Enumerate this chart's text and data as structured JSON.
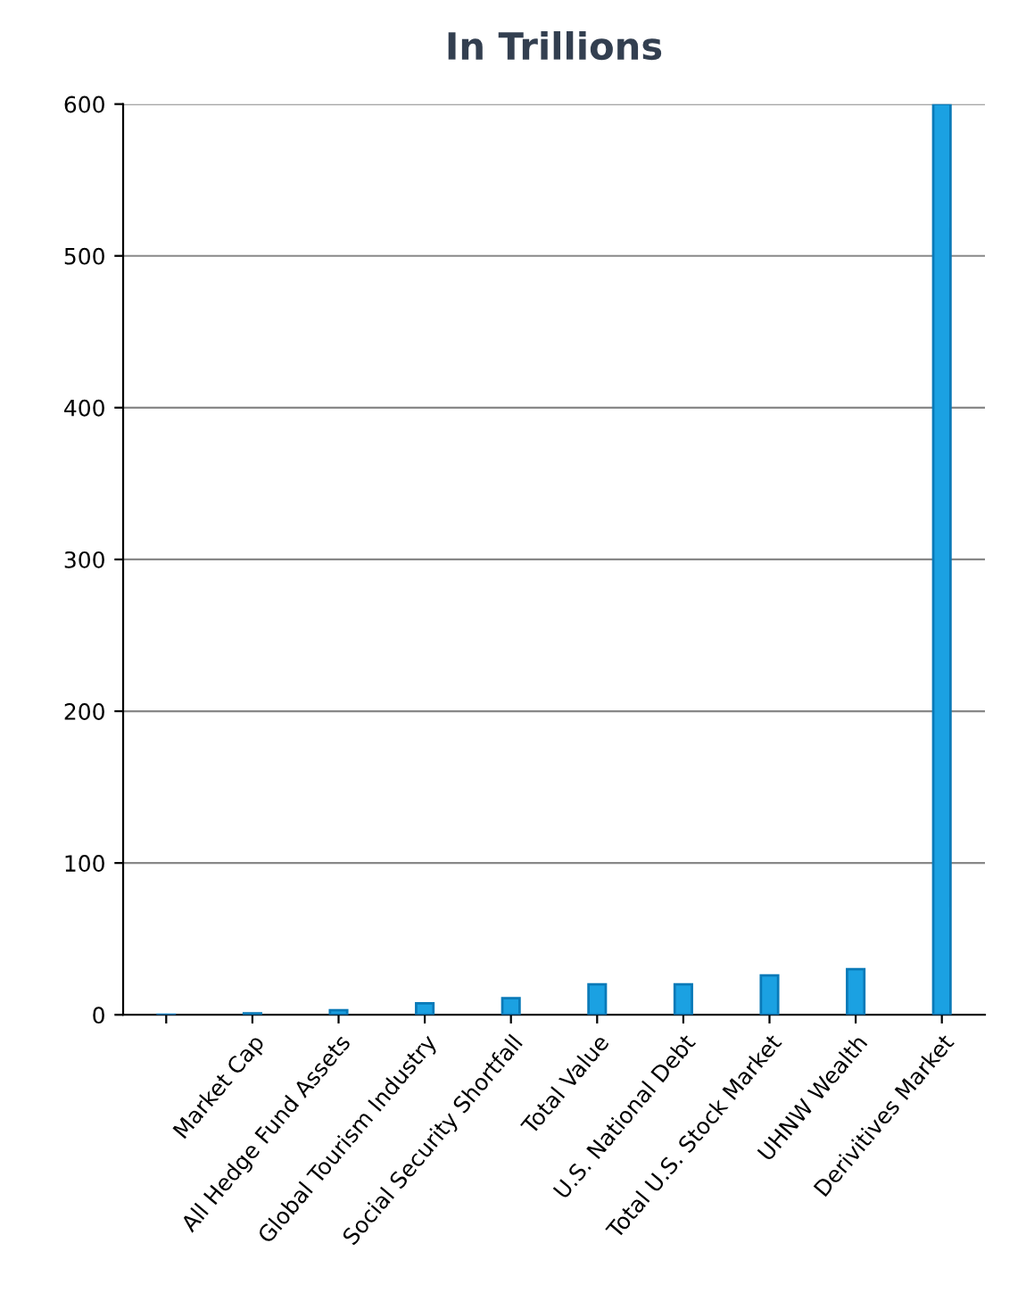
{
  "chart_data": {
    "type": "bar",
    "title": "In Trillions",
    "categories": [
      null,
      "Market Cap",
      "All Hedge Fund Assets",
      "Global Tourism Industry",
      "Social Security Shortfall",
      "Total Value",
      "U.S. National Debt",
      "Total U.S. Stock Market",
      "UHNW Wealth",
      "Derivitives Market"
    ],
    "values": [
      0.1,
      0.9,
      3,
      7.6,
      11,
      20,
      20,
      26,
      30,
      600
    ],
    "color": "#1ba1e2",
    "ylim": [
      0,
      600
    ],
    "yticks": [
      0,
      100,
      200,
      300,
      400,
      500,
      600
    ],
    "grid": "y",
    "legend": false
  }
}
